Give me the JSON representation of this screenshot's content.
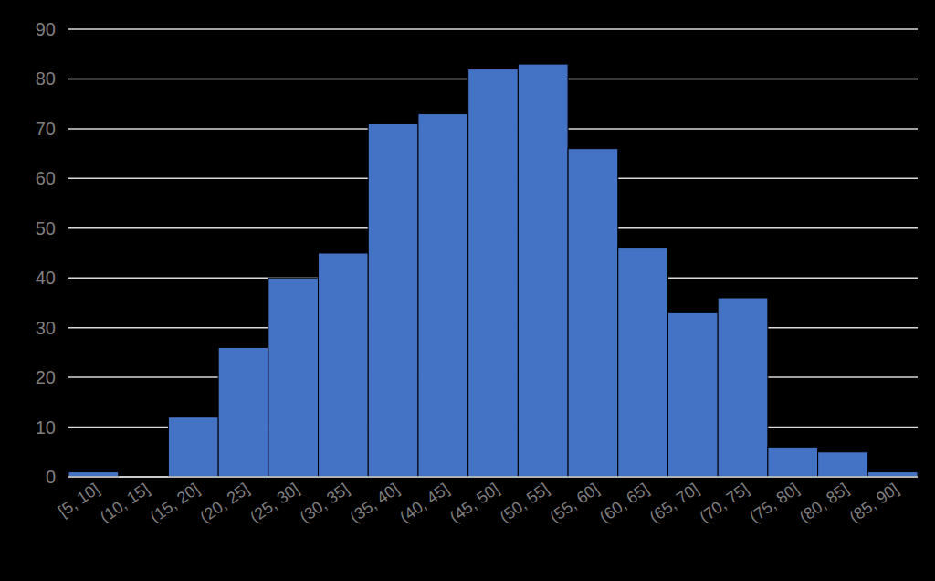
{
  "chart_data": {
    "type": "bar",
    "categories": [
      "[5, 10]",
      "(10, 15]",
      "(15, 20]",
      "(20, 25]",
      "(25, 30]",
      "(30, 35]",
      "(35, 40]",
      "(40, 45]",
      "(45, 50]",
      "(50, 55]",
      "(55, 60]",
      "(60, 65]",
      "(65, 70]",
      "(70, 75]",
      "(75, 80]",
      "(80, 85]",
      "(85, 90]"
    ],
    "values": [
      1,
      0,
      12,
      26,
      40,
      45,
      71,
      73,
      82,
      83,
      66,
      46,
      33,
      36,
      6,
      5,
      1
    ],
    "color": "#4472c4",
    "ylim": [
      0,
      90
    ],
    "yticks": [
      0,
      10,
      20,
      30,
      40,
      50,
      60,
      70,
      80,
      90
    ],
    "grid": true
  }
}
